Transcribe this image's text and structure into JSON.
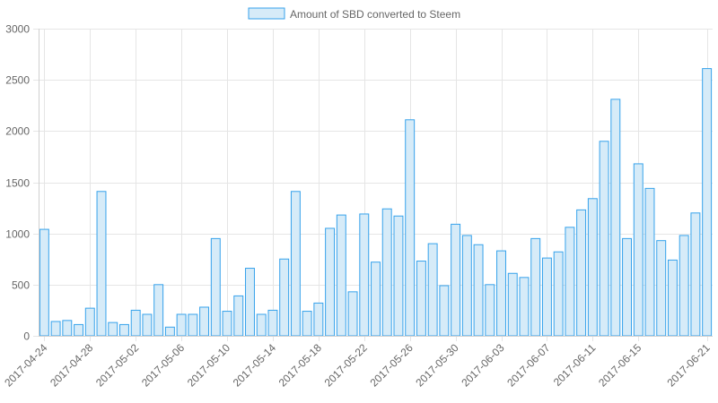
{
  "chart_data": {
    "type": "bar",
    "title": "",
    "xlabel": "",
    "ylabel": "",
    "ylim": [
      0,
      3000
    ],
    "yticks": [
      0,
      500,
      1000,
      1500,
      2000,
      2500,
      3000
    ],
    "grid": true,
    "legend_position": "top-center",
    "colors": {
      "bar_fill": "#d6ebf8",
      "bar_stroke": "#36a2eb",
      "grid": "#e5e5e5",
      "text": "#666666"
    },
    "categories": [
      "2017-04-24",
      "2017-04-25",
      "2017-04-26",
      "2017-04-27",
      "2017-04-28",
      "2017-04-29",
      "2017-04-30",
      "2017-05-01",
      "2017-05-02",
      "2017-05-03",
      "2017-05-04",
      "2017-05-05",
      "2017-05-06",
      "2017-05-07",
      "2017-05-08",
      "2017-05-09",
      "2017-05-10",
      "2017-05-11",
      "2017-05-12",
      "2017-05-13",
      "2017-05-14",
      "2017-05-15",
      "2017-05-16",
      "2017-05-17",
      "2017-05-18",
      "2017-05-19",
      "2017-05-20",
      "2017-05-21",
      "2017-05-22",
      "2017-05-23",
      "2017-05-24",
      "2017-05-25",
      "2017-05-26",
      "2017-05-27",
      "2017-05-28",
      "2017-05-29",
      "2017-05-30",
      "2017-05-31",
      "2017-06-01",
      "2017-06-02",
      "2017-06-03",
      "2017-06-04",
      "2017-06-05",
      "2017-06-06",
      "2017-06-07",
      "2017-06-08",
      "2017-06-09",
      "2017-06-10",
      "2017-06-11",
      "2017-06-12",
      "2017-06-13",
      "2017-06-14",
      "2017-06-15",
      "2017-06-16",
      "2017-06-17",
      "2017-06-18",
      "2017-06-19",
      "2017-06-20",
      "2017-06-21"
    ],
    "x_tick_labels": [
      "2017-04-24",
      "2017-04-28",
      "2017-05-02",
      "2017-05-06",
      "2017-05-10",
      "2017-05-14",
      "2017-05-18",
      "2017-05-22",
      "2017-05-26",
      "2017-05-30",
      "2017-06-03",
      "2017-06-07",
      "2017-06-11",
      "2017-06-15",
      "2017-06-21"
    ],
    "series": [
      {
        "name": "Amount of SBD converted to Steem",
        "values": [
          1040,
          140,
          150,
          110,
          270,
          1410,
          130,
          110,
          250,
          210,
          500,
          85,
          210,
          210,
          280,
          950,
          240,
          390,
          660,
          210,
          250,
          750,
          1410,
          240,
          320,
          1050,
          1180,
          430,
          1190,
          720,
          1240,
          1170,
          2110,
          730,
          900,
          490,
          1090,
          980,
          890,
          500,
          830,
          610,
          570,
          950,
          760,
          820,
          1060,
          1230,
          1340,
          1900,
          2310,
          950,
          1680,
          1440,
          930,
          740,
          980,
          1200,
          2610
        ]
      }
    ]
  }
}
